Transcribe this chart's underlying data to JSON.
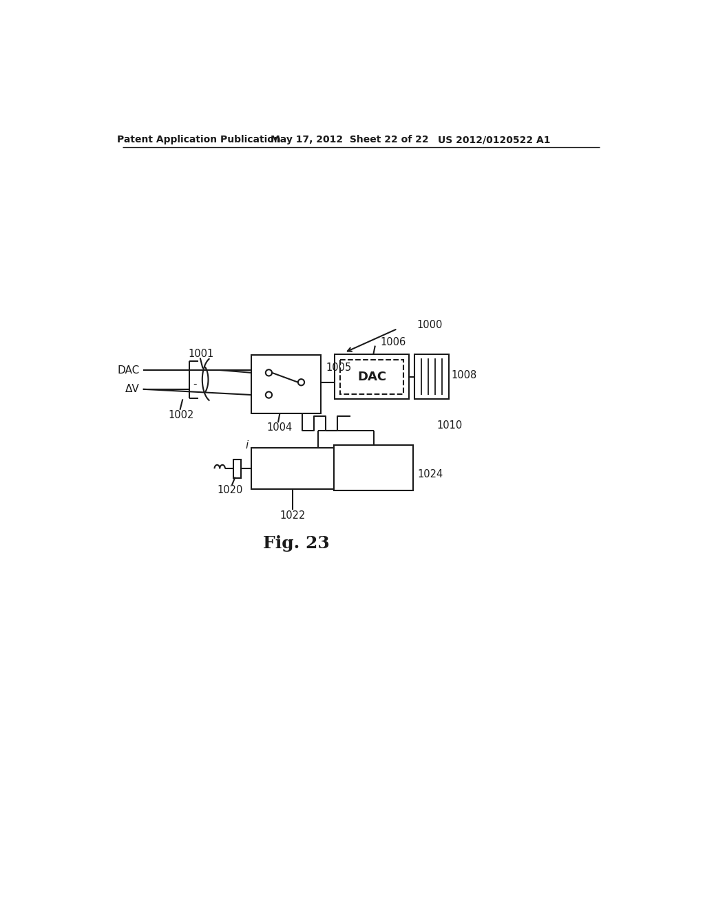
{
  "header_left": "Patent Application Publication",
  "header_mid": "May 17, 2012  Sheet 22 of 22",
  "header_right": "US 2012/0120522 A1",
  "figure_label": "Fig. 23",
  "bg_color": "#ffffff",
  "line_color": "#1a1a1a",
  "label_1000": "1000",
  "label_1001": "1001",
  "label_1002": "1002",
  "label_1004": "1004",
  "label_1005": "1005",
  "label_1006": "1006",
  "label_1008": "1008",
  "label_1010": "1010",
  "label_1020": "1020",
  "label_1022": "1022",
  "label_1024": "1024",
  "text_DAC_input": "DAC",
  "text_DeltaV": "ΔV",
  "text_DAC_box": "DAC"
}
